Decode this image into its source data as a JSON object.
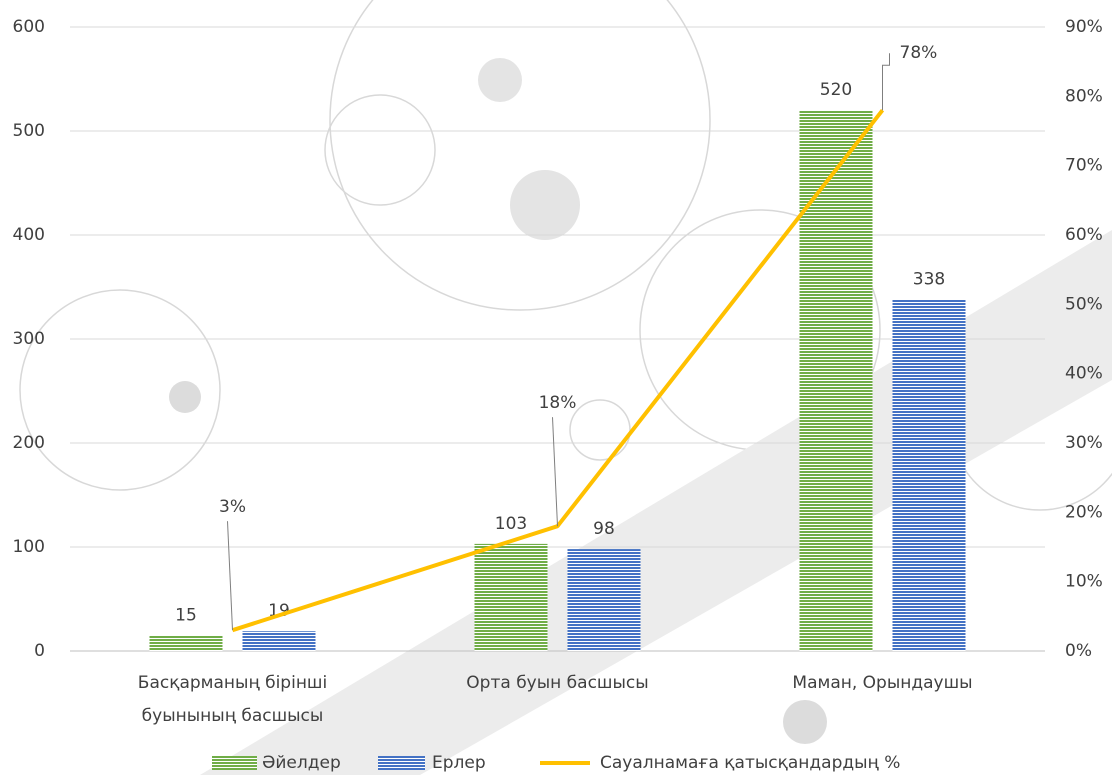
{
  "chart_data": {
    "type": "bar",
    "categories": [
      "Басқарманың бірінші буынының басшысы",
      "Орта буын басшысы",
      "Маман, Орындаушы"
    ],
    "series": [
      {
        "name": "Әйелдер",
        "color": "#70ad47",
        "values": [
          15,
          103,
          520
        ]
      },
      {
        "name": "Ерлер",
        "color": "#4472c4",
        "values": [
          19,
          98,
          338
        ]
      },
      {
        "name": "Сауалнамаға қатысқандардың %",
        "color": "#ffc000",
        "type": "line",
        "axis": "y2",
        "values": [
          3,
          18,
          78
        ],
        "value_labels": [
          "3%",
          "18%",
          "78%"
        ]
      }
    ],
    "ylim": [
      0,
      600
    ],
    "yticks": [
      0,
      100,
      200,
      300,
      400,
      500,
      600
    ],
    "y2lim": [
      0,
      90
    ],
    "y2ticks": [
      {
        "value": 0,
        "label": "0%"
      },
      {
        "value": 10,
        "label": "10%"
      },
      {
        "value": 20,
        "label": "20%"
      },
      {
        "value": 30,
        "label": "30%"
      },
      {
        "value": 40,
        "label": "40%"
      },
      {
        "value": 50,
        "label": "50%"
      },
      {
        "value": 60,
        "label": "60%"
      },
      {
        "value": 70,
        "label": "70%"
      },
      {
        "value": 80,
        "label": "80%"
      },
      {
        "value": 90,
        "label": "90%"
      }
    ],
    "grid": true
  }
}
